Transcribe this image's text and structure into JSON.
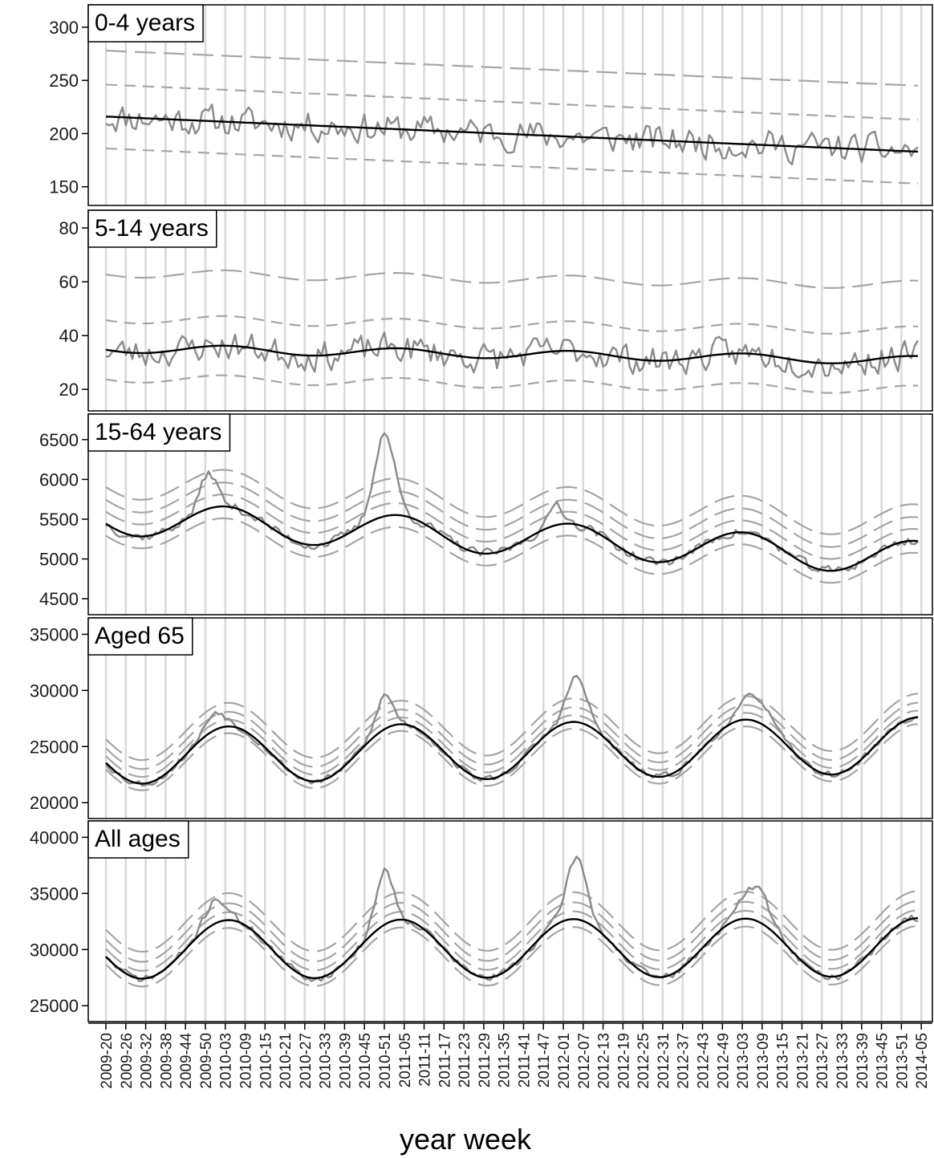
{
  "chart_data": {
    "type": "line",
    "xlabel": "year week",
    "x_tick_labels": [
      "2009-20",
      "2009-26",
      "2009-32",
      "2009-38",
      "2009-44",
      "2009-50",
      "2010-03",
      "2010-09",
      "2010-15",
      "2010-21",
      "2010-27",
      "2010-33",
      "2010-39",
      "2010-45",
      "2010-51",
      "2011-05",
      "2011-11",
      "2011-17",
      "2011-23",
      "2011-29",
      "2011-35",
      "2011-41",
      "2011-47",
      "2012-01",
      "2012-07",
      "2012-13",
      "2012-19",
      "2012-25",
      "2012-31",
      "2012-37",
      "2012-43",
      "2012-49",
      "2013-03",
      "2013-09",
      "2013-15",
      "2013-21",
      "2013-27",
      "2013-33",
      "2013-39",
      "2013-45",
      "2013-51",
      "2014-05"
    ],
    "x_range_weeks": [
      0,
      245
    ],
    "grid": "vertical lines every 6 weeks",
    "colors": {
      "observed": "#8a8a8a",
      "baseline": "#000000",
      "limits": "#a5a5a5",
      "grid": "#d9d9d9"
    },
    "panels": [
      {
        "title": "0-4 years",
        "yticks": [
          150,
          200,
          250,
          300
        ],
        "ylim": [
          140,
          312
        ],
        "baseline": {
          "start": 216,
          "end": 183,
          "amplitude": 0,
          "peak_week": 0
        },
        "limits": [
          {
            "offset": 30,
            "style": "short-dash"
          },
          {
            "offset": -30,
            "style": "short-dash"
          },
          {
            "offset": 62,
            "style": "long-dash"
          }
        ],
        "observed": {
          "noise": 13,
          "seed": 11,
          "peaks": []
        }
      },
      {
        "title": "5-14 years",
        "yticks": [
          20,
          40,
          60,
          80
        ],
        "ylim": [
          15,
          83
        ],
        "baseline": {
          "start": 35.3,
          "end": 30.8,
          "amplitude": 1.6,
          "peak_week": 36
        },
        "limits": [
          {
            "offset": 11,
            "style": "short-dash"
          },
          {
            "offset": -11,
            "style": "short-dash"
          },
          {
            "offset": 28,
            "style": "long-dash"
          }
        ],
        "observed": {
          "noise": 5,
          "seed": 23,
          "peaks": []
        }
      },
      {
        "title": "15-64 years",
        "yticks": [
          4500,
          5000,
          5500,
          6000,
          6500
        ],
        "ylim": [
          4400,
          6700
        ],
        "baseline": {
          "start": 5520,
          "end": 5010,
          "amplitude": 215,
          "peak_week": 36
        },
        "limits": [
          {
            "offset": 150,
            "style": "long-dash"
          },
          {
            "offset": -150,
            "style": "long-dash"
          },
          {
            "offset": 300,
            "style": "long-dash"
          },
          {
            "offset": 460,
            "style": "long-dash"
          }
        ],
        "observed": {
          "noise": 55,
          "seed": 37,
          "peaks": [
            {
              "week": 31,
              "height": 450,
              "width": 2.5
            },
            {
              "week": 84,
              "height": 1050,
              "width": 3
            },
            {
              "week": 136,
              "height": 280,
              "width": 2
            }
          ]
        }
      },
      {
        "title": "Aged 65",
        "yticks": [
          20000,
          25000,
          30000,
          35000
        ],
        "ylim": [
          19300,
          35600
        ],
        "baseline": {
          "start": 24150,
          "end": 25100,
          "amplitude": 2500,
          "peak_week": 37
        },
        "limits": [
          {
            "offset": 600,
            "style": "long-dash"
          },
          {
            "offset": -600,
            "style": "long-dash"
          },
          {
            "offset": 1300,
            "style": "long-dash"
          },
          {
            "offset": 2100,
            "style": "long-dash"
          }
        ],
        "observed": {
          "noise": 280,
          "seed": 53,
          "peaks": [
            {
              "week": 33,
              "height": 1600,
              "width": 3
            },
            {
              "week": 84,
              "height": 3000,
              "width": 2.5
            },
            {
              "week": 142,
              "height": 4000,
              "width": 3
            },
            {
              "week": 196,
              "height": 2300,
              "width": 4
            }
          ]
        }
      },
      {
        "title": "All ages",
        "yticks": [
          25000,
          30000,
          35000,
          40000
        ],
        "ylim": [
          24300,
          40600
        ],
        "baseline": {
          "start": 30000,
          "end": 30200,
          "amplitude": 2600,
          "peak_week": 37
        },
        "limits": [
          {
            "offset": 700,
            "style": "long-dash"
          },
          {
            "offset": -700,
            "style": "long-dash"
          },
          {
            "offset": 1500,
            "style": "long-dash"
          },
          {
            "offset": 2400,
            "style": "long-dash"
          }
        ],
        "observed": {
          "noise": 320,
          "seed": 71,
          "peaks": [
            {
              "week": 33,
              "height": 2200,
              "width": 3
            },
            {
              "week": 84,
              "height": 5000,
              "width": 2.5
            },
            {
              "week": 142,
              "height": 5500,
              "width": 3
            },
            {
              "week": 196,
              "height": 3000,
              "width": 4
            }
          ]
        }
      }
    ]
  }
}
